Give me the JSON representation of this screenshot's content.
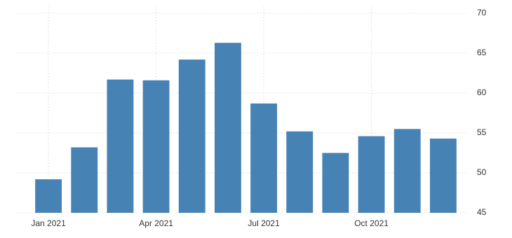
{
  "chart_data": {
    "type": "bar",
    "categories": [
      "Jan 2021",
      null,
      null,
      "Apr 2021",
      null,
      null,
      "Jul 2021",
      null,
      null,
      "Oct 2021",
      null,
      null
    ],
    "values": [
      49.2,
      53.2,
      61.7,
      61.6,
      64.2,
      66.3,
      58.7,
      55.2,
      52.5,
      54.6,
      55.5,
      54.3
    ],
    "color": "#4682b4",
    "ylim": [
      45,
      70
    ],
    "yticks": [
      45,
      50,
      55,
      60,
      65,
      70
    ],
    "grid": true
  }
}
